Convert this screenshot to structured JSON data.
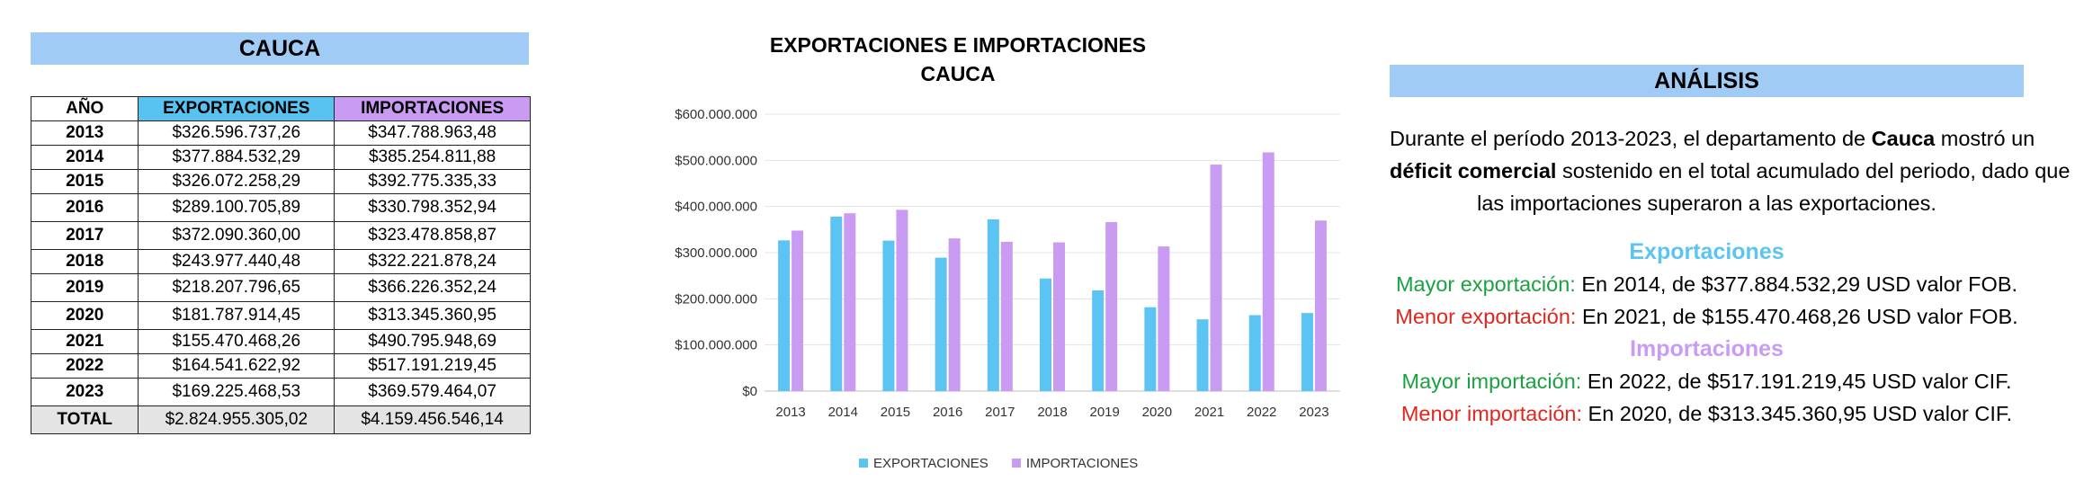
{
  "table": {
    "department": "CAUCA",
    "headers": {
      "year": "AÑO",
      "exports": "EXPORTACIONES",
      "imports": "IMPORTACIONES"
    },
    "rows": [
      {
        "year": "2013",
        "exports": "$326.596.737,26",
        "imports": "$347.788.963,48"
      },
      {
        "year": "2014",
        "exports": "$377.884.532,29",
        "imports": "$385.254.811,88"
      },
      {
        "year": "2015",
        "exports": "$326.072.258,29",
        "imports": "$392.775.335,33"
      },
      {
        "year": "2016",
        "exports": "$289.100.705,89",
        "imports": "$330.798.352,94"
      },
      {
        "year": "2017",
        "exports": "$372.090.360,00",
        "imports": "$323.478.858,87"
      },
      {
        "year": "2018",
        "exports": "$243.977.440,48",
        "imports": "$322.221.878,24"
      },
      {
        "year": "2019",
        "exports": "$218.207.796,65",
        "imports": "$366.226.352,24"
      },
      {
        "year": "2020",
        "exports": "$181.787.914,45",
        "imports": "$313.345.360,95"
      },
      {
        "year": "2021",
        "exports": "$155.470.468,26",
        "imports": "$490.795.948,69"
      },
      {
        "year": "2022",
        "exports": "$164.541.622,92",
        "imports": "$517.191.219,45"
      },
      {
        "year": "2023",
        "exports": "$169.225.468,53",
        "imports": "$369.579.464,07"
      }
    ],
    "total": {
      "label": "TOTAL",
      "exports": "$2.824.955.305,02",
      "imports": "$4.159.456.546,14"
    }
  },
  "chart_data": {
    "type": "bar",
    "title_line1": "EXPORTACIONES E IMPORTACIONES",
    "title_line2": "CAUCA",
    "categories": [
      "2013",
      "2014",
      "2015",
      "2016",
      "2017",
      "2018",
      "2019",
      "2020",
      "2021",
      "2022",
      "2023"
    ],
    "series": [
      {
        "name": "EXPORTACIONES",
        "color": "#5bc4f3",
        "values": [
          326596737.26,
          377884532.29,
          326072258.29,
          289100705.89,
          372090360.0,
          243977440.48,
          218207796.65,
          181787914.45,
          155470468.26,
          164541622.92,
          169225468.53
        ]
      },
      {
        "name": "IMPORTACIONES",
        "color": "#c99bf2",
        "values": [
          347788963.48,
          385254811.88,
          392775335.33,
          330798352.94,
          323478858.87,
          322221878.24,
          366226352.24,
          313345360.95,
          490795948.69,
          517191219.45,
          369579464.07
        ]
      }
    ],
    "yticks": [
      "$0",
      "$100.000.000",
      "$200.000.000",
      "$300.000.000",
      "$400.000.000",
      "$500.000.000",
      "$600.000.000"
    ],
    "ylim": [
      0,
      600000000
    ],
    "grid": true,
    "legend": "bottom"
  },
  "analysis": {
    "title": "ANÁLISIS",
    "intro_1": "Durante el período 2013-2023, el departamento de ",
    "intro_dept": "Cauca",
    "intro_2": " mostró un",
    "intro_bold": "déficit comercial",
    "intro_3": " sostenido en el total acumulado del periodo, dado que",
    "intro_4": "las importaciones superaron a las exportaciones.",
    "exports_head": "Exportaciones",
    "exports_max_label": "Mayor exportación:",
    "exports_max_text": " En 2014, de $377.884.532,29 USD valor FOB.",
    "exports_min_label": "Menor exportación:",
    "exports_min_text": " En 2021, de $155.470.468,26 USD valor FOB.",
    "imports_head": "Importaciones",
    "imports_max_label": "Mayor importación:",
    "imports_max_text": " En 2022, de $517.191.219,45 USD valor CIF.",
    "imports_min_label": "Menor importación:",
    "imports_min_text": " En 2020, de $313.345.360,95 USD valor CIF."
  }
}
